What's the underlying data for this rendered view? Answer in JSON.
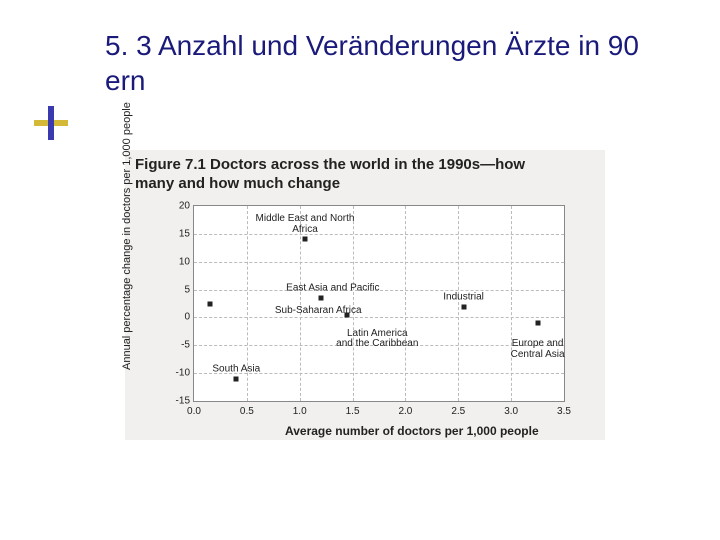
{
  "slide": {
    "title": "5. 3 Anzahl und Veränderungen Ärzte in 90 ern",
    "title_color": "#1a1a7a",
    "title_fontsize": 28,
    "bullet_h_color": "#d4b838",
    "bullet_v_color": "#3a3ab0"
  },
  "figure": {
    "title": "Figure 7.1 Doctors across the world in the 1990s—how many and how much change",
    "title_fontsize": 15,
    "background_color": "#f2f0ee",
    "plot_background": "#ffffff",
    "border_color": "#888888",
    "grid_color": "#bbbbbb",
    "text_color": "#222222",
    "xlabel": "Average number of doctors per 1,000 people",
    "ylabel": "Annual percentage change in doctors per 1,000 people",
    "label_fontsize": 11
  },
  "chart": {
    "type": "scatter",
    "xlim": [
      0.0,
      3.5
    ],
    "ylim": [
      -15,
      20
    ],
    "xticks": [
      0.0,
      0.5,
      1.0,
      1.5,
      2.0,
      2.5,
      3.0,
      3.5
    ],
    "yticks": [
      -15,
      -10,
      -5,
      0,
      5,
      10,
      15,
      20
    ],
    "xtick_labels": [
      "0.0",
      "0.5",
      "1.0",
      "1.5",
      "2.0",
      "2.5",
      "3.0",
      "3.5"
    ],
    "ytick_labels": [
      "-15",
      "-10",
      "-5",
      "0",
      "5",
      "10",
      "15",
      "20"
    ],
    "point_color": "#222222",
    "point_size": 5,
    "tick_fontsize": 10,
    "series": [
      {
        "label": "Middle East and North Africa",
        "x": 1.05,
        "y": 14.0
      },
      {
        "label": "East Asia and Pacific",
        "x": 1.2,
        "y": 3.5
      },
      {
        "label": "Sub-Saharan Africa",
        "x": 0.15,
        "y": 2.5
      },
      {
        "label": "Latin America and the Caribbean",
        "x": 1.45,
        "y": 0.5
      },
      {
        "label": "Industrial",
        "x": 2.55,
        "y": 1.8
      },
      {
        "label": "Europe and Central Asia",
        "x": 3.25,
        "y": -1.0
      },
      {
        "label": "South Asia",
        "x": 0.4,
        "y": -11.0
      }
    ],
    "label_offsets": {
      "Middle East and North Africa": {
        "dx": 0,
        "dy": -4,
        "align": "center"
      },
      "East Asia and Pacific": {
        "dx": 12,
        "dy": -4,
        "align": "center"
      },
      "Sub-Saharan Africa": {
        "dx": 65,
        "dy": 7,
        "align": "left"
      },
      "Latin America and the Caribbean": {
        "dx": 30,
        "dy": 14,
        "align": "center"
      },
      "Industrial": {
        "dx": 0,
        "dy": -4,
        "align": "center"
      },
      "Europe and Central Asia": {
        "dx": 0,
        "dy": 16,
        "align": "center"
      },
      "South Asia": {
        "dx": 0,
        "dy": -4,
        "align": "center"
      }
    }
  }
}
